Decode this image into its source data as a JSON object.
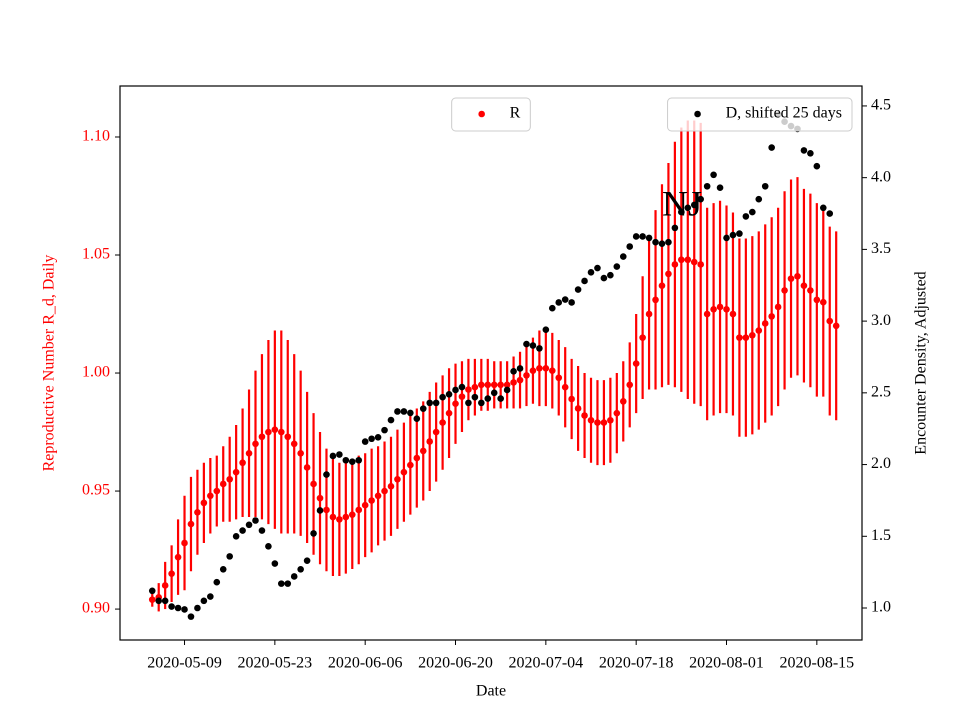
{
  "chart_data": {
    "type": "scatter",
    "annotation": "NJ",
    "x_label": "Date",
    "y_label": "Reproductive Number R_d, Daily",
    "y2_label": "Encounter Density, Adjusted",
    "x": [
      "2020-05-04",
      "2020-05-05",
      "2020-05-06",
      "2020-05-07",
      "2020-05-08",
      "2020-05-09",
      "2020-05-10",
      "2020-05-11",
      "2020-05-12",
      "2020-05-13",
      "2020-05-14",
      "2020-05-15",
      "2020-05-16",
      "2020-05-17",
      "2020-05-18",
      "2020-05-19",
      "2020-05-20",
      "2020-05-21",
      "2020-05-22",
      "2020-05-23",
      "2020-05-24",
      "2020-05-25",
      "2020-05-26",
      "2020-05-27",
      "2020-05-28",
      "2020-05-29",
      "2020-05-30",
      "2020-05-31",
      "2020-06-01",
      "2020-06-02",
      "2020-06-03",
      "2020-06-04",
      "2020-06-05",
      "2020-06-06",
      "2020-06-07",
      "2020-06-08",
      "2020-06-09",
      "2020-06-10",
      "2020-06-11",
      "2020-06-12",
      "2020-06-13",
      "2020-06-14",
      "2020-06-15",
      "2020-06-16",
      "2020-06-17",
      "2020-06-18",
      "2020-06-19",
      "2020-06-20",
      "2020-06-21",
      "2020-06-22",
      "2020-06-23",
      "2020-06-24",
      "2020-06-25",
      "2020-06-26",
      "2020-06-27",
      "2020-06-28",
      "2020-06-29",
      "2020-06-30",
      "2020-07-01",
      "2020-07-02",
      "2020-07-03",
      "2020-07-04",
      "2020-07-05",
      "2020-07-06",
      "2020-07-07",
      "2020-07-08",
      "2020-07-09",
      "2020-07-10",
      "2020-07-11",
      "2020-07-12",
      "2020-07-13",
      "2020-07-14",
      "2020-07-15",
      "2020-07-16",
      "2020-07-17",
      "2020-07-18",
      "2020-07-19",
      "2020-07-20",
      "2020-07-21",
      "2020-07-22",
      "2020-07-23",
      "2020-07-24",
      "2020-07-25",
      "2020-07-26",
      "2020-07-27",
      "2020-07-28",
      "2020-07-29",
      "2020-07-30",
      "2020-07-31",
      "2020-08-01",
      "2020-08-02",
      "2020-08-03",
      "2020-08-04",
      "2020-08-05",
      "2020-08-06",
      "2020-08-07",
      "2020-08-08",
      "2020-08-09",
      "2020-08-10",
      "2020-08-11",
      "2020-08-12",
      "2020-08-13",
      "2020-08-14",
      "2020-08-15",
      "2020-08-16",
      "2020-08-17",
      "2020-08-18"
    ],
    "series": [
      {
        "name": "R",
        "color": "#ff0000",
        "axis": "y",
        "legend_loc": "upper center",
        "values": [
          0.904,
          0.905,
          0.91,
          0.915,
          0.922,
          0.928,
          0.936,
          0.941,
          0.945,
          0.948,
          0.95,
          0.953,
          0.955,
          0.958,
          0.962,
          0.966,
          0.97,
          0.973,
          0.975,
          0.976,
          0.975,
          0.973,
          0.97,
          0.966,
          0.96,
          0.953,
          0.947,
          0.942,
          0.939,
          0.938,
          0.939,
          0.94,
          0.942,
          0.944,
          0.946,
          0.948,
          0.95,
          0.952,
          0.955,
          0.958,
          0.961,
          0.964,
          0.967,
          0.971,
          0.975,
          0.979,
          0.983,
          0.987,
          0.99,
          0.993,
          0.994,
          0.995,
          0.995,
          0.995,
          0.995,
          0.995,
          0.996,
          0.997,
          0.999,
          1.001,
          1.002,
          1.002,
          1.001,
          0.998,
          0.994,
          0.989,
          0.985,
          0.982,
          0.98,
          0.979,
          0.979,
          0.98,
          0.983,
          0.988,
          0.995,
          1.004,
          1.015,
          1.025,
          1.031,
          1.037,
          1.042,
          1.046,
          1.048,
          1.048,
          1.047,
          1.046,
          1.025,
          1.027,
          1.028,
          1.027,
          1.025,
          1.015,
          1.015,
          1.016,
          1.018,
          1.021,
          1.024,
          1.028,
          1.035,
          1.04,
          1.041,
          1.037,
          1.035,
          1.031,
          1.03,
          1.022,
          1.02
        ],
        "errors": [
          0.003,
          0.006,
          0.01,
          0.012,
          0.016,
          0.02,
          0.02,
          0.018,
          0.017,
          0.016,
          0.015,
          0.016,
          0.018,
          0.02,
          0.023,
          0.027,
          0.031,
          0.035,
          0.039,
          0.042,
          0.043,
          0.041,
          0.038,
          0.035,
          0.032,
          0.03,
          0.028,
          0.026,
          0.025,
          0.024,
          0.024,
          0.023,
          0.023,
          0.022,
          0.022,
          0.021,
          0.021,
          0.021,
          0.021,
          0.021,
          0.021,
          0.021,
          0.021,
          0.021,
          0.021,
          0.02,
          0.019,
          0.017,
          0.015,
          0.013,
          0.012,
          0.011,
          0.011,
          0.01,
          0.01,
          0.01,
          0.011,
          0.012,
          0.013,
          0.014,
          0.016,
          0.016,
          0.016,
          0.016,
          0.017,
          0.017,
          0.018,
          0.018,
          0.018,
          0.018,
          0.018,
          0.018,
          0.017,
          0.017,
          0.018,
          0.021,
          0.026,
          0.032,
          0.038,
          0.043,
          0.047,
          0.052,
          0.056,
          0.059,
          0.06,
          0.06,
          0.045,
          0.045,
          0.045,
          0.044,
          0.043,
          0.042,
          0.042,
          0.042,
          0.042,
          0.042,
          0.042,
          0.042,
          0.042,
          0.042,
          0.042,
          0.041,
          0.041,
          0.041,
          0.04,
          0.04,
          0.04
        ]
      },
      {
        "name": "D, shifted 25 days",
        "color": "#000000",
        "axis": "y2",
        "legend_loc": "upper right",
        "values": [
          1.12,
          1.05,
          1.05,
          1.01,
          1.0,
          0.99,
          0.94,
          1.0,
          1.05,
          1.08,
          1.18,
          1.27,
          1.36,
          1.5,
          1.54,
          1.58,
          1.61,
          1.54,
          1.43,
          1.31,
          1.17,
          1.17,
          1.22,
          1.27,
          1.33,
          1.52,
          1.68,
          1.93,
          2.06,
          2.07,
          2.03,
          2.02,
          2.03,
          2.16,
          2.18,
          2.19,
          2.24,
          2.31,
          2.37,
          2.37,
          2.36,
          2.32,
          2.39,
          2.43,
          2.43,
          2.47,
          2.49,
          2.52,
          2.54,
          2.43,
          2.47,
          2.43,
          2.46,
          2.5,
          2.46,
          2.52,
          2.65,
          2.67,
          2.84,
          2.83,
          2.81,
          2.94,
          3.09,
          3.13,
          3.15,
          3.13,
          3.22,
          3.28,
          3.34,
          3.37,
          3.3,
          3.32,
          3.38,
          3.45,
          3.52,
          3.59,
          3.59,
          3.58,
          3.55,
          3.54,
          3.55,
          3.65,
          3.76,
          3.79,
          3.81,
          3.85,
          3.94,
          4.02,
          3.93,
          3.58,
          3.6,
          3.61,
          3.73,
          3.76,
          3.85,
          3.94,
          4.21,
          4.44,
          4.39,
          4.36,
          4.34,
          4.19,
          4.17,
          4.08,
          3.79,
          3.75,
          null
        ]
      }
    ],
    "xlim": [
      "2020-04-29",
      "2020-08-22"
    ],
    "xticks": [
      "2020-05-09",
      "2020-05-23",
      "2020-06-06",
      "2020-06-20",
      "2020-07-04",
      "2020-07-18",
      "2020-08-01",
      "2020-08-15"
    ],
    "ylim": [
      0.8869,
      1.1216
    ],
    "yticks": [
      {
        "value": 0.9,
        "label": "0.90"
      },
      0.95,
      {
        "value": 1.0,
        "label": "1.00"
      },
      1.05,
      {
        "value": 1.1,
        "label": "1.10"
      }
    ],
    "y_tick_color": "#ff0000",
    "y2lim": [
      0.777,
      4.639
    ],
    "y2ticks": [
      {
        "value": 1.0,
        "label": "1.0"
      },
      1.5,
      {
        "value": 2.0,
        "label": "2.0"
      },
      2.5,
      {
        "value": 3.0,
        "label": "3.0"
      },
      3.5,
      {
        "value": 4.0,
        "label": "4.0"
      },
      4.5
    ],
    "grid": false
  }
}
